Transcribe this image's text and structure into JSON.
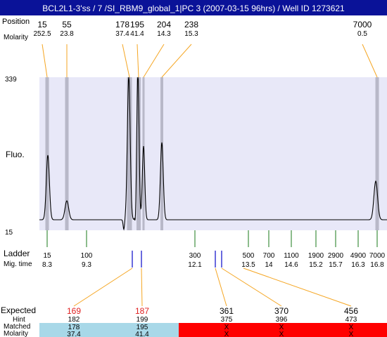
{
  "title": "BCL2L1-3'ss / 7 /SI_RBM9_global_1|PC 3 (2007-03-15 96hrs) / Well ID 1273621",
  "colors": {
    "title_bg": "#0a1298",
    "title_fg": "#ffffff",
    "plot_bg": "#e8e8f8",
    "peak_band": "#b8b8c8",
    "callout": "#f5a623",
    "ladder_tick": "#1a7a1a",
    "blue_mark": "#1a1acc",
    "red_text": "#e02020",
    "matched_ok": "#a8d8e8",
    "matched_fail": "#ff0000"
  },
  "chart_data": {
    "type": "line",
    "top_labels": {
      "row1": "Position",
      "row2": "Molarity"
    },
    "peaks": [
      {
        "size": "15",
        "molarity": "252.5"
      },
      {
        "size": "55",
        "molarity": "23.8"
      },
      {
        "size": "178",
        "molarity": "37.4"
      },
      {
        "size": "195",
        "molarity": "41.4"
      },
      {
        "size": "204",
        "molarity": "14.3"
      },
      {
        "size": "238",
        "molarity": "15.3"
      },
      {
        "size": "7000",
        "molarity": "0.5"
      }
    ],
    "ylabel": "Fluo.",
    "ylim": [
      15,
      339
    ],
    "ytick_labels": [
      "339",
      "15"
    ],
    "ladder": {
      "label": "Ladder",
      "mig_label": "Mig. time",
      "items": [
        {
          "size": "15",
          "time": "8.3"
        },
        {
          "size": "100",
          "time": "9.3"
        },
        {
          "size": "300",
          "time": "12.1"
        },
        {
          "size": "500",
          "time": "13.5"
        },
        {
          "size": "700",
          "time": "14"
        },
        {
          "size": "1100",
          "time": "14.6"
        },
        {
          "size": "1900",
          "time": "15.2"
        },
        {
          "size": "2900",
          "time": "15.7"
        },
        {
          "size": "4900",
          "time": "16.3"
        },
        {
          "size": "7000",
          "time": "16.8"
        }
      ]
    },
    "expected": {
      "labels": {
        "expected": "Expected",
        "hint": "Hint",
        "matched": "Matched",
        "molarity": "Molarity"
      },
      "columns": [
        {
          "expected": "169",
          "hint": "182",
          "matched": "178",
          "molarity": "37.4",
          "found": true
        },
        {
          "expected": "187",
          "hint": "199",
          "matched": "195",
          "molarity": "41.4",
          "found": true
        },
        {
          "expected": "361",
          "hint": "375",
          "matched": "X",
          "molarity": "X",
          "found": false
        },
        {
          "expected": "370",
          "hint": "396",
          "matched": "X",
          "molarity": "X",
          "found": false
        },
        {
          "expected": "456",
          "hint": "473",
          "matched": "X",
          "molarity": "X",
          "found": false
        }
      ]
    }
  }
}
